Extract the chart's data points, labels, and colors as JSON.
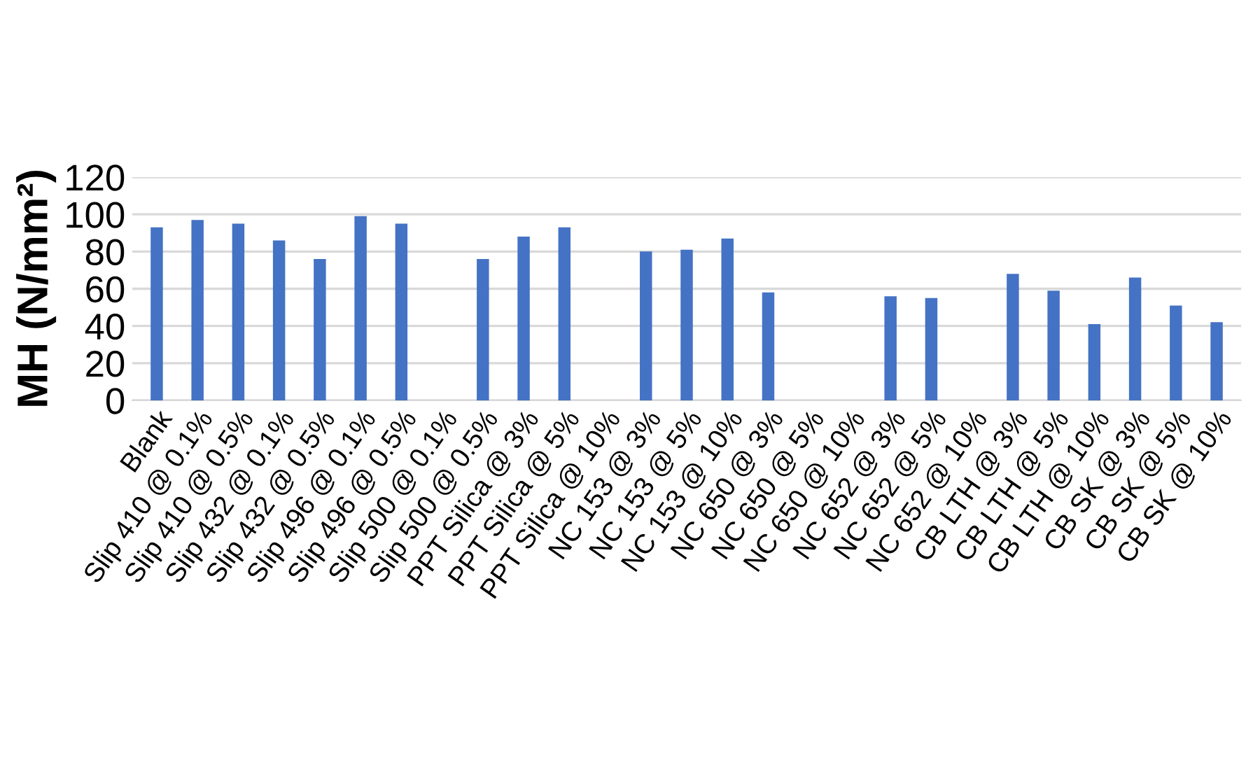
{
  "chart_data": {
    "type": "bar",
    "ylabel": "MH (N/mm²)",
    "categories": [
      "Blank",
      "Slip 410 @ 0.1%",
      "Slip 410 @ 0.5%",
      "Slip 432 @ 0.1%",
      "Slip 432 @ 0.5%",
      "Slip 496 @ 0.1%",
      "Slip 496 @ 0.5%",
      "Slip 500 @ 0.1%",
      "Slip 500 @ 0.5%",
      "PPT Silica @ 3%",
      "PPT Silica @ 5%",
      "PPT Silica @ 10%",
      "NC 153 @ 3%",
      "NC 153 @ 5%",
      "NC 153 @ 10%",
      "NC 650 @ 3%",
      "NC 650 @ 5%",
      "NC 650 @ 10%",
      "NC 652 @ 3%",
      "NC 652 @ 5%",
      "NC 652 @ 10%",
      "CB LTH @ 3%",
      "CB LTH @ 5%",
      "CB LTH @ 10%",
      "CB SK @ 3%",
      "CB SK @ 5%",
      "CB SK @ 10%"
    ],
    "values": [
      93,
      97,
      95,
      86,
      76,
      99,
      95,
      null,
      76,
      88,
      93,
      null,
      80,
      81,
      87,
      58,
      null,
      null,
      56,
      55,
      null,
      68,
      59,
      41,
      66,
      51,
      42
    ],
    "color": "#4472c4",
    "ylim": [
      0,
      120
    ],
    "yticks": [
      0,
      20,
      40,
      60,
      80,
      100,
      120
    ],
    "grid": "y"
  }
}
